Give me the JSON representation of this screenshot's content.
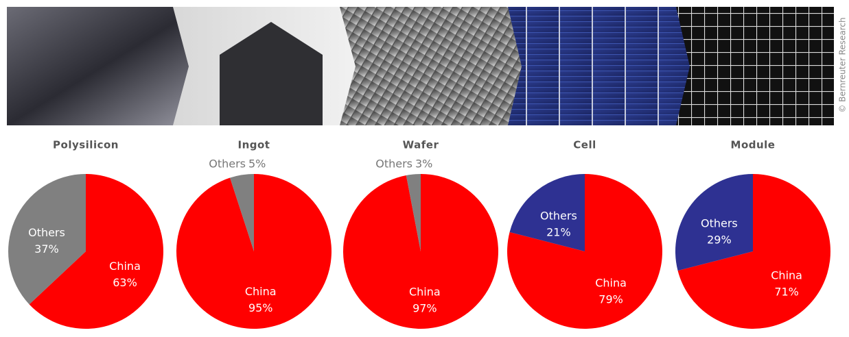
{
  "credit": "© Bernreuter Research",
  "chart_data": [
    {
      "type": "pie",
      "title": "Polysilicon",
      "categories": [
        "China",
        "Others"
      ],
      "values": [
        63,
        37
      ],
      "value_labels": [
        "63%",
        "37%"
      ],
      "colors": [
        "#ff0000",
        "#808080"
      ]
    },
    {
      "type": "pie",
      "title": "Ingot",
      "categories": [
        "China",
        "Others"
      ],
      "values": [
        95,
        5
      ],
      "value_labels": [
        "95%",
        "5%"
      ],
      "colors": [
        "#ff0000",
        "#808080"
      ]
    },
    {
      "type": "pie",
      "title": "Wafer",
      "categories": [
        "China",
        "Others"
      ],
      "values": [
        97,
        3
      ],
      "value_labels": [
        "97%",
        "3%"
      ],
      "colors": [
        "#ff0000",
        "#808080"
      ]
    },
    {
      "type": "pie",
      "title": "Cell",
      "categories": [
        "China",
        "Others"
      ],
      "values": [
        79,
        21
      ],
      "value_labels": [
        "79%",
        "21%"
      ],
      "colors": [
        "#ff0000",
        "#2e3192"
      ]
    },
    {
      "type": "pie",
      "title": "Module",
      "categories": [
        "China",
        "Others"
      ],
      "values": [
        71,
        29
      ],
      "value_labels": [
        "71%",
        "29%"
      ],
      "colors": [
        "#ff0000",
        "#2e3192"
      ]
    }
  ]
}
